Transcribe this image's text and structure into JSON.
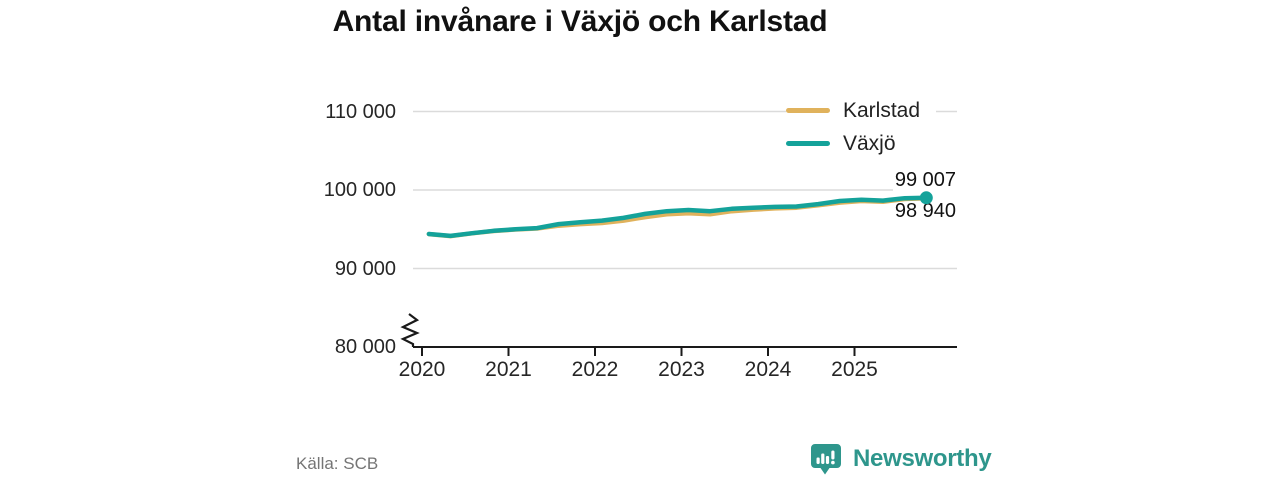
{
  "title": "Antal invånare i Växjö och Karlstad",
  "source": "Källa: SCB",
  "branding": {
    "name": "Newsworthy",
    "color": "#2E968C"
  },
  "colors": {
    "karlstad": "#E0B25C",
    "vaxjo": "#14A29A",
    "gridline": "#DBDBDB",
    "axis": "#1A1A1A",
    "tick_text": "#262626",
    "source_text": "#757575"
  },
  "chart_data": {
    "type": "line",
    "title": "Antal invånare i Växjö och Karlstad",
    "xlabel": "",
    "ylabel": "",
    "ylim": [
      80000,
      110000
    ],
    "axis_break": true,
    "grid": "horizontal",
    "legend_position": "top-right",
    "legend": [
      "Karlstad",
      "Växjö"
    ],
    "x_ticks": [
      2020,
      2021,
      2022,
      2023,
      2024,
      2025
    ],
    "y_ticks": [
      {
        "label": "110 000",
        "value": 110000
      },
      {
        "label": "100 000",
        "value": 100000
      },
      {
        "label": "90 000",
        "value": 90000
      },
      {
        "label": "80 000",
        "value": 80000
      }
    ],
    "end_labels": {
      "vaxjo": "99 007",
      "karlstad": "98 940"
    },
    "x": [
      2020.08,
      2020.33,
      2020.58,
      2020.83,
      2021.08,
      2021.33,
      2021.58,
      2021.83,
      2022.08,
      2022.33,
      2022.58,
      2022.83,
      2023.08,
      2023.33,
      2023.58,
      2023.83,
      2024.08,
      2024.33,
      2024.58,
      2024.83,
      2025.08,
      2025.33,
      2025.58,
      2025.83
    ],
    "series": [
      {
        "name": "Karlstad",
        "color": "#E0B25C",
        "end_dot": false,
        "end_value": 98940,
        "values": [
          94380,
          94130,
          94480,
          94780,
          94970,
          95100,
          95450,
          95650,
          95800,
          96100,
          96550,
          96900,
          97050,
          96900,
          97300,
          97500,
          97650,
          97750,
          98050,
          98400,
          98600,
          98500,
          98850,
          98940
        ]
      },
      {
        "name": "Växjö",
        "color": "#14A29A",
        "end_dot": true,
        "end_value": 99007,
        "values": [
          94400,
          94150,
          94500,
          94800,
          95000,
          95150,
          95650,
          95900,
          96100,
          96450,
          96950,
          97300,
          97450,
          97300,
          97600,
          97750,
          97850,
          97900,
          98200,
          98600,
          98750,
          98650,
          98950,
          99007
        ]
      }
    ]
  }
}
